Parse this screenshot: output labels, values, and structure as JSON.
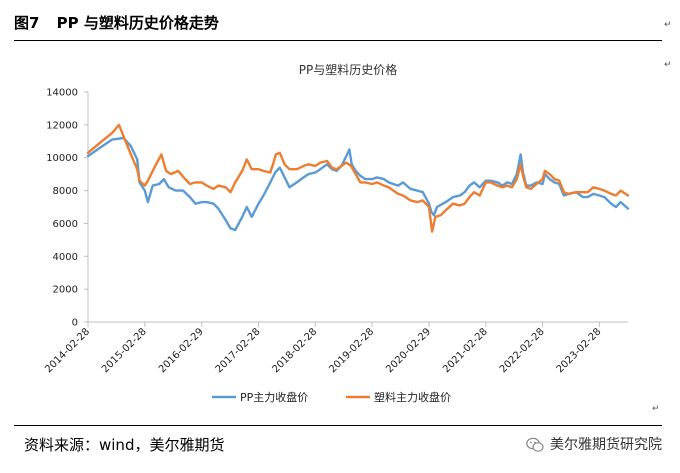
{
  "figure": {
    "number": "图7",
    "heading": "PP 与塑料历史价格走势"
  },
  "footer": {
    "source": "资料来源：wind，美尔雅期货",
    "brand": "美尔雅期货研究院"
  },
  "colors": {
    "pp": "#5b9bd5",
    "plastic": "#ed7d31"
  },
  "chart_data": {
    "type": "line",
    "title": "PP与塑料历史价格",
    "ylim": [
      0,
      14000
    ],
    "yticks": [
      0,
      2000,
      4000,
      6000,
      8000,
      10000,
      12000,
      14000
    ],
    "xlim": [
      "2014-02-28",
      "2023-08-31"
    ],
    "xticks": [
      "2014-02-28",
      "2015-02-28",
      "2016-02-29",
      "2017-02-28",
      "2018-02-28",
      "2019-02-28",
      "2020-02-29",
      "2021-02-28",
      "2022-02-28",
      "2023-02-28"
    ],
    "legend_position": "bottom",
    "series": [
      {
        "name": "PP主力收盘价",
        "color": "#5b9bd5",
        "points": [
          [
            "2014-02-28",
            10100
          ],
          [
            "2014-05-15",
            10600
          ],
          [
            "2014-08-01",
            11100
          ],
          [
            "2014-10-15",
            11200
          ],
          [
            "2014-12-01",
            10700
          ],
          [
            "2015-01-10",
            9900
          ],
          [
            "2015-01-25",
            8500
          ],
          [
            "2015-02-28",
            8000
          ],
          [
            "2015-03-20",
            7300
          ],
          [
            "2015-04-20",
            8300
          ],
          [
            "2015-06-01",
            8400
          ],
          [
            "2015-07-01",
            8700
          ],
          [
            "2015-08-01",
            8200
          ],
          [
            "2015-09-15",
            8000
          ],
          [
            "2015-11-01",
            8000
          ],
          [
            "2015-12-15",
            7600
          ],
          [
            "2016-01-20",
            7200
          ],
          [
            "2016-02-29",
            7300
          ],
          [
            "2016-04-01",
            7300
          ],
          [
            "2016-05-15",
            7200
          ],
          [
            "2016-06-15",
            6900
          ],
          [
            "2016-08-01",
            6200
          ],
          [
            "2016-09-01",
            5700
          ],
          [
            "2016-10-01",
            5600
          ],
          [
            "2016-11-15",
            6400
          ],
          [
            "2016-12-15",
            7000
          ],
          [
            "2017-01-15",
            6400
          ],
          [
            "2017-02-28",
            7200
          ],
          [
            "2017-04-01",
            7700
          ],
          [
            "2017-05-15",
            8500
          ],
          [
            "2017-06-15",
            9100
          ],
          [
            "2017-07-15",
            9400
          ],
          [
            "2017-08-15",
            8800
          ],
          [
            "2017-09-15",
            8200
          ],
          [
            "2017-11-01",
            8500
          ],
          [
            "2017-12-15",
            8800
          ],
          [
            "2018-01-15",
            9000
          ],
          [
            "2018-02-28",
            9100
          ],
          [
            "2018-04-01",
            9300
          ],
          [
            "2018-05-15",
            9600
          ],
          [
            "2018-06-15",
            9300
          ],
          [
            "2018-07-15",
            9200
          ],
          [
            "2018-08-15",
            9500
          ],
          [
            "2018-09-15",
            10100
          ],
          [
            "2018-10-05",
            10500
          ],
          [
            "2018-10-20",
            9600
          ],
          [
            "2018-11-15",
            9200
          ],
          [
            "2018-12-15",
            8900
          ],
          [
            "2019-01-15",
            8700
          ],
          [
            "2019-02-28",
            8700
          ],
          [
            "2019-04-01",
            8800
          ],
          [
            "2019-05-15",
            8700
          ],
          [
            "2019-06-15",
            8500
          ],
          [
            "2019-07-15",
            8400
          ],
          [
            "2019-08-15",
            8300
          ],
          [
            "2019-09-15",
            8500
          ],
          [
            "2019-11-01",
            8100
          ],
          [
            "2019-12-15",
            8000
          ],
          [
            "2020-01-20",
            7900
          ],
          [
            "2020-02-29",
            7200
          ],
          [
            "2020-03-15",
            6700
          ],
          [
            "2020-04-01",
            6500
          ],
          [
            "2020-04-20",
            7000
          ],
          [
            "2020-06-15",
            7300
          ],
          [
            "2020-08-01",
            7600
          ],
          [
            "2020-09-15",
            7700
          ],
          [
            "2020-10-15",
            7900
          ],
          [
            "2020-11-15",
            8300
          ],
          [
            "2020-12-15",
            8500
          ],
          [
            "2021-01-20",
            8200
          ],
          [
            "2021-02-28",
            8600
          ],
          [
            "2021-03-31",
            8600
          ],
          [
            "2021-05-15",
            8500
          ],
          [
            "2021-06-15",
            8300
          ],
          [
            "2021-07-15",
            8500
          ],
          [
            "2021-08-15",
            8400
          ],
          [
            "2021-09-15",
            9000
          ],
          [
            "2021-10-10",
            10200
          ],
          [
            "2021-10-25",
            9100
          ],
          [
            "2021-11-15",
            8300
          ],
          [
            "2021-12-15",
            8300
          ],
          [
            "2022-01-20",
            8500
          ],
          [
            "2022-02-28",
            8400
          ],
          [
            "2022-03-15",
            9000
          ],
          [
            "2022-04-15",
            8700
          ],
          [
            "2022-05-15",
            8500
          ],
          [
            "2022-06-15",
            8400
          ],
          [
            "2022-07-15",
            7700
          ],
          [
            "2022-08-15",
            7800
          ],
          [
            "2022-10-01",
            7900
          ],
          [
            "2022-11-15",
            7600
          ],
          [
            "2022-12-15",
            7600
          ],
          [
            "2023-01-20",
            7800
          ],
          [
            "2023-02-28",
            7700
          ],
          [
            "2023-04-01",
            7600
          ],
          [
            "2023-05-15",
            7200
          ],
          [
            "2023-06-15",
            7000
          ],
          [
            "2023-07-15",
            7300
          ],
          [
            "2023-08-31",
            6900
          ]
        ]
      },
      {
        "name": "塑料主力收盘价",
        "color": "#ed7d31",
        "points": [
          [
            "2014-02-28",
            10300
          ],
          [
            "2014-05-15",
            10900
          ],
          [
            "2014-08-01",
            11500
          ],
          [
            "2014-09-15",
            12000
          ],
          [
            "2014-10-15",
            11300
          ],
          [
            "2014-12-01",
            10200
          ],
          [
            "2015-01-10",
            9300
          ],
          [
            "2015-01-25",
            8600
          ],
          [
            "2015-02-28",
            8300
          ],
          [
            "2015-03-20",
            8600
          ],
          [
            "2015-05-01",
            9400
          ],
          [
            "2015-06-15",
            10200
          ],
          [
            "2015-07-15",
            9200
          ],
          [
            "2015-08-15",
            9000
          ],
          [
            "2015-10-01",
            9200
          ],
          [
            "2015-11-15",
            8700
          ],
          [
            "2015-12-15",
            8400
          ],
          [
            "2016-01-20",
            8500
          ],
          [
            "2016-02-29",
            8500
          ],
          [
            "2016-04-01",
            8300
          ],
          [
            "2016-05-15",
            8100
          ],
          [
            "2016-06-15",
            8300
          ],
          [
            "2016-08-01",
            8200
          ],
          [
            "2016-09-01",
            7900
          ],
          [
            "2016-10-01",
            8500
          ],
          [
            "2016-11-15",
            9200
          ],
          [
            "2016-12-15",
            9900
          ],
          [
            "2017-01-15",
            9300
          ],
          [
            "2017-02-28",
            9300
          ],
          [
            "2017-04-01",
            9200
          ],
          [
            "2017-05-15",
            9100
          ],
          [
            "2017-06-01",
            9600
          ],
          [
            "2017-06-20",
            10200
          ],
          [
            "2017-07-15",
            10300
          ],
          [
            "2017-08-15",
            9600
          ],
          [
            "2017-09-15",
            9300
          ],
          [
            "2017-11-01",
            9300
          ],
          [
            "2017-12-15",
            9500
          ],
          [
            "2018-01-15",
            9600
          ],
          [
            "2018-02-28",
            9500
          ],
          [
            "2018-04-01",
            9700
          ],
          [
            "2018-05-15",
            9800
          ],
          [
            "2018-06-15",
            9400
          ],
          [
            "2018-07-15",
            9300
          ],
          [
            "2018-08-15",
            9500
          ],
          [
            "2018-09-15",
            9700
          ],
          [
            "2018-10-15",
            9500
          ],
          [
            "2018-11-15",
            9000
          ],
          [
            "2018-12-15",
            8500
          ],
          [
            "2019-01-15",
            8500
          ],
          [
            "2019-02-28",
            8400
          ],
          [
            "2019-04-01",
            8500
          ],
          [
            "2019-05-15",
            8300
          ],
          [
            "2019-06-15",
            8200
          ],
          [
            "2019-07-15",
            8000
          ],
          [
            "2019-08-15",
            7800
          ],
          [
            "2019-09-15",
            7700
          ],
          [
            "2019-11-01",
            7400
          ],
          [
            "2019-12-15",
            7300
          ],
          [
            "2020-01-20",
            7400
          ],
          [
            "2020-02-29",
            7000
          ],
          [
            "2020-03-20",
            5500
          ],
          [
            "2020-04-10",
            6400
          ],
          [
            "2020-05-15",
            6500
          ],
          [
            "2020-06-15",
            6800
          ],
          [
            "2020-08-01",
            7200
          ],
          [
            "2020-09-15",
            7100
          ],
          [
            "2020-10-15",
            7200
          ],
          [
            "2020-11-15",
            7600
          ],
          [
            "2020-12-15",
            7900
          ],
          [
            "2021-01-20",
            7700
          ],
          [
            "2021-02-28",
            8500
          ],
          [
            "2021-03-31",
            8500
          ],
          [
            "2021-05-15",
            8300
          ],
          [
            "2021-06-15",
            8200
          ],
          [
            "2021-07-15",
            8300
          ],
          [
            "2021-08-15",
            8200
          ],
          [
            "2021-09-15",
            8700
          ],
          [
            "2021-10-10",
            9600
          ],
          [
            "2021-10-25",
            8900
          ],
          [
            "2021-11-15",
            8200
          ],
          [
            "2021-12-15",
            8100
          ],
          [
            "2022-01-20",
            8400
          ],
          [
            "2022-02-28",
            8700
          ],
          [
            "2022-03-15",
            9200
          ],
          [
            "2022-04-15",
            9000
          ],
          [
            "2022-05-15",
            8700
          ],
          [
            "2022-06-15",
            8600
          ],
          [
            "2022-07-15",
            7900
          ],
          [
            "2022-08-15",
            7800
          ],
          [
            "2022-10-01",
            7900
          ],
          [
            "2022-11-15",
            7900
          ],
          [
            "2022-12-15",
            7900
          ],
          [
            "2023-01-20",
            8200
          ],
          [
            "2023-02-28",
            8100
          ],
          [
            "2023-04-01",
            8000
          ],
          [
            "2023-05-15",
            7800
          ],
          [
            "2023-06-15",
            7700
          ],
          [
            "2023-07-15",
            8000
          ],
          [
            "2023-08-31",
            7700
          ]
        ]
      }
    ]
  }
}
